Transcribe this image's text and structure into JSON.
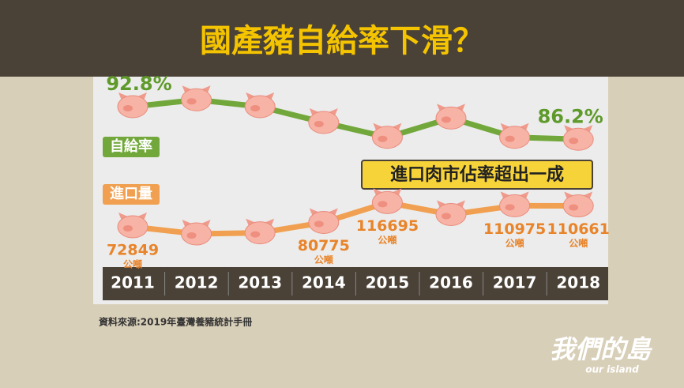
{
  "chart_data": {
    "type": "line",
    "title": "國產豬自給率下滑？",
    "categories": [
      "2011",
      "2012",
      "2013",
      "2014",
      "2015",
      "2016",
      "2017",
      "2018"
    ],
    "series": [
      {
        "name": "自給率",
        "color": "#72a83b",
        "values": [
          92.8,
          94.2,
          92.8,
          89.6,
          86.6,
          90.5,
          86.6,
          86.2
        ],
        "value_labels": [
          "92.8%",
          null,
          null,
          null,
          null,
          null,
          null,
          "86.2%"
        ]
      },
      {
        "name": "進口量",
        "color": "#f0a050",
        "axis": "y2",
        "unit": "公噸",
        "values": [
          72849,
          60000,
          62000,
          80775,
          116695,
          95000,
          110975,
          110661
        ],
        "value_labels": [
          "72849",
          null,
          null,
          "80775",
          "116695",
          null,
          "110975",
          "110661"
        ]
      }
    ],
    "ylim": [
      84,
      96
    ],
    "y2lim": [
      40000,
      140000
    ],
    "annotation": "進口肉市佔率超出一成",
    "source": "資料來源:2019年臺灣養豬統計手冊"
  },
  "brand": {
    "name": "我們的島",
    "sub": "our island"
  }
}
